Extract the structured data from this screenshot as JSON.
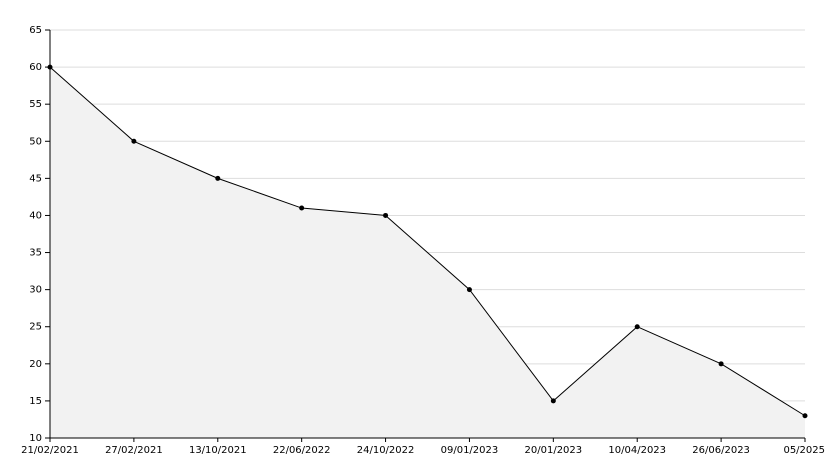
{
  "chart_data": {
    "type": "area",
    "categories": [
      "21/02/2021",
      "27/02/2021",
      "13/10/2021",
      "22/06/2022",
      "24/10/2022",
      "09/01/2023",
      "20/01/2023",
      "10/04/2023",
      "26/06/2023",
      "05/2025"
    ],
    "values": [
      60,
      50,
      45,
      41,
      40,
      30,
      15,
      25,
      20,
      13
    ],
    "color": "#000000",
    "fill": "#f2f2f2",
    "ylim": [
      10,
      65
    ],
    "yticks": [
      10,
      15,
      20,
      25,
      30,
      35,
      40,
      45,
      50,
      55,
      60,
      65
    ],
    "grid": true
  }
}
